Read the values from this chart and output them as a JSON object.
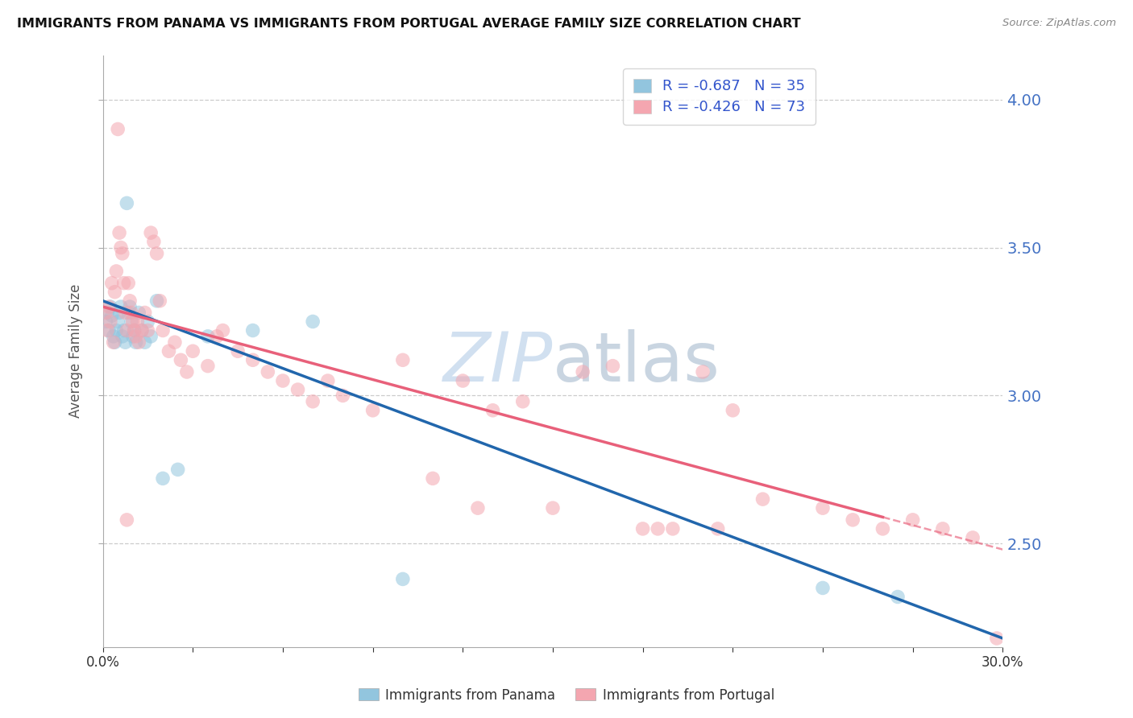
{
  "title": "IMMIGRANTS FROM PANAMA VS IMMIGRANTS FROM PORTUGAL AVERAGE FAMILY SIZE CORRELATION CHART",
  "source": "Source: ZipAtlas.com",
  "ylabel": "Average Family Size",
  "yticks_right": [
    2.5,
    3.0,
    3.5,
    4.0
  ],
  "xlim": [
    0.0,
    30.0
  ],
  "ylim": [
    2.15,
    4.15
  ],
  "panama_R": "-0.687",
  "panama_N": "35",
  "portugal_R": "-0.426",
  "portugal_N": "73",
  "panama_color": "#92c5de",
  "portugal_color": "#f4a6b0",
  "panama_line_color": "#2166ac",
  "portugal_line_color": "#e8607a",
  "legend_R_color": "#222222",
  "legend_val_color": "#3355cc",
  "watermark_color": "#ccddef",
  "panama_points_x": [
    0.1,
    0.15,
    0.2,
    0.25,
    0.3,
    0.35,
    0.4,
    0.45,
    0.5,
    0.55,
    0.6,
    0.65,
    0.7,
    0.75,
    0.8,
    0.85,
    0.9,
    0.95,
    1.0,
    1.05,
    1.1,
    1.2,
    1.3,
    1.4,
    1.5,
    1.6,
    1.8,
    2.0,
    2.5,
    3.5,
    5.0,
    7.0,
    10.0,
    24.0,
    26.5
  ],
  "panama_points_y": [
    3.25,
    3.28,
    3.22,
    3.3,
    3.27,
    3.2,
    3.18,
    3.22,
    3.25,
    3.28,
    3.3,
    3.2,
    3.22,
    3.18,
    3.65,
    3.28,
    3.3,
    3.25,
    3.2,
    3.22,
    3.18,
    3.28,
    3.22,
    3.18,
    3.25,
    3.2,
    3.32,
    2.72,
    2.75,
    3.2,
    3.22,
    3.25,
    2.38,
    2.35,
    2.32
  ],
  "portugal_points_x": [
    0.1,
    0.15,
    0.2,
    0.25,
    0.3,
    0.35,
    0.4,
    0.45,
    0.5,
    0.55,
    0.6,
    0.65,
    0.7,
    0.75,
    0.8,
    0.85,
    0.9,
    0.95,
    1.0,
    1.05,
    1.1,
    1.15,
    1.2,
    1.3,
    1.4,
    1.5,
    1.6,
    1.7,
    1.8,
    1.9,
    2.0,
    2.2,
    2.4,
    2.6,
    2.8,
    3.0,
    3.5,
    4.0,
    5.0,
    5.5,
    6.0,
    6.5,
    7.0,
    7.5,
    8.0,
    9.0,
    10.0,
    11.0,
    12.0,
    13.0,
    14.0,
    15.0,
    16.0,
    17.0,
    18.0,
    19.0,
    20.0,
    21.0,
    22.0,
    24.0,
    25.0,
    26.0,
    27.0,
    28.0,
    29.0,
    29.5,
    3.8,
    4.5,
    0.8,
    12.5,
    18.5,
    20.5,
    29.8
  ],
  "portugal_points_y": [
    3.28,
    3.22,
    3.3,
    3.25,
    3.38,
    3.18,
    3.35,
    3.42,
    3.9,
    3.55,
    3.5,
    3.48,
    3.38,
    3.28,
    3.22,
    3.38,
    3.32,
    3.28,
    3.25,
    3.22,
    3.2,
    3.25,
    3.18,
    3.22,
    3.28,
    3.22,
    3.55,
    3.52,
    3.48,
    3.32,
    3.22,
    3.15,
    3.18,
    3.12,
    3.08,
    3.15,
    3.1,
    3.22,
    3.12,
    3.08,
    3.05,
    3.02,
    2.98,
    3.05,
    3.0,
    2.95,
    3.12,
    2.72,
    3.05,
    2.95,
    2.98,
    2.62,
    3.08,
    3.1,
    2.55,
    2.55,
    3.08,
    2.95,
    2.65,
    2.62,
    2.58,
    2.55,
    2.58,
    2.55,
    2.52,
    2.12,
    3.2,
    3.15,
    2.58,
    2.62,
    2.55,
    2.55,
    2.18
  ],
  "pan_line_x0": 0.0,
  "pan_line_x1": 30.0,
  "pan_line_y0": 3.32,
  "pan_line_y1": 2.18,
  "por_line_x0": 0.0,
  "por_line_x1": 30.0,
  "por_line_y0": 3.3,
  "por_line_y1": 2.48,
  "por_dash_start_x": 26.0
}
